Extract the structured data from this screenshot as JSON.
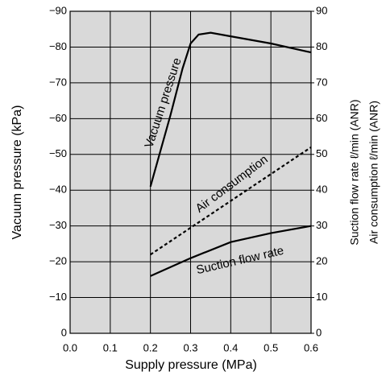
{
  "chart_data": {
    "type": "line",
    "x_label": "Supply pressure (MPa)",
    "y_label": "Vacuum pressure (kPa)",
    "y2_labels": [
      "Suction flow rate  ℓ/min (ANR)",
      "Air consumption  ℓ/min (ANR)"
    ],
    "xlim": [
      0,
      0.6
    ],
    "xticks": [
      {
        "value": 0,
        "label": "0.0"
      },
      0.1,
      0.2,
      0.3,
      0.4,
      0.5,
      0.6
    ],
    "ylim": [
      0,
      -90
    ],
    "yticks": [
      0,
      {
        "value": -10,
        "label": "−10"
      },
      {
        "value": -20,
        "label": "−20"
      },
      {
        "value": -30,
        "label": "−30"
      },
      {
        "value": -40,
        "label": "−40"
      },
      {
        "value": -50,
        "label": "−50"
      },
      {
        "value": -60,
        "label": "−60"
      },
      {
        "value": -70,
        "label": "−70"
      },
      {
        "value": -80,
        "label": "−80"
      },
      {
        "value": -90,
        "label": "−90"
      }
    ],
    "y2lim": [
      0,
      90
    ],
    "y2ticks": [
      0,
      10,
      20,
      30,
      40,
      50,
      60,
      70,
      80,
      90
    ],
    "grid": true,
    "background": "#d9d9d9",
    "series": [
      {
        "name": "Vacuum pressure",
        "color": "#000000",
        "line_style": "solid",
        "x": [
          0.2,
          0.25,
          0.28,
          0.3,
          0.32,
          0.35,
          0.4,
          0.5,
          0.6
        ],
        "values": [
          -41,
          -61,
          -74,
          -81,
          -83.5,
          -84,
          -83,
          -81,
          -78.5
        ]
      },
      {
        "name": "Air consumption",
        "color": "#000000",
        "line_style": "dashed",
        "axis": "y2",
        "x": [
          0.2,
          0.6
        ],
        "values": [
          22,
          52
        ]
      },
      {
        "name": "Suction flow rate",
        "color": "#000000",
        "line_style": "solid",
        "axis": "y2",
        "x": [
          0.2,
          0.3,
          0.4,
          0.5,
          0.6
        ],
        "values": [
          16,
          21,
          25.5,
          28,
          30
        ]
      }
    ]
  }
}
